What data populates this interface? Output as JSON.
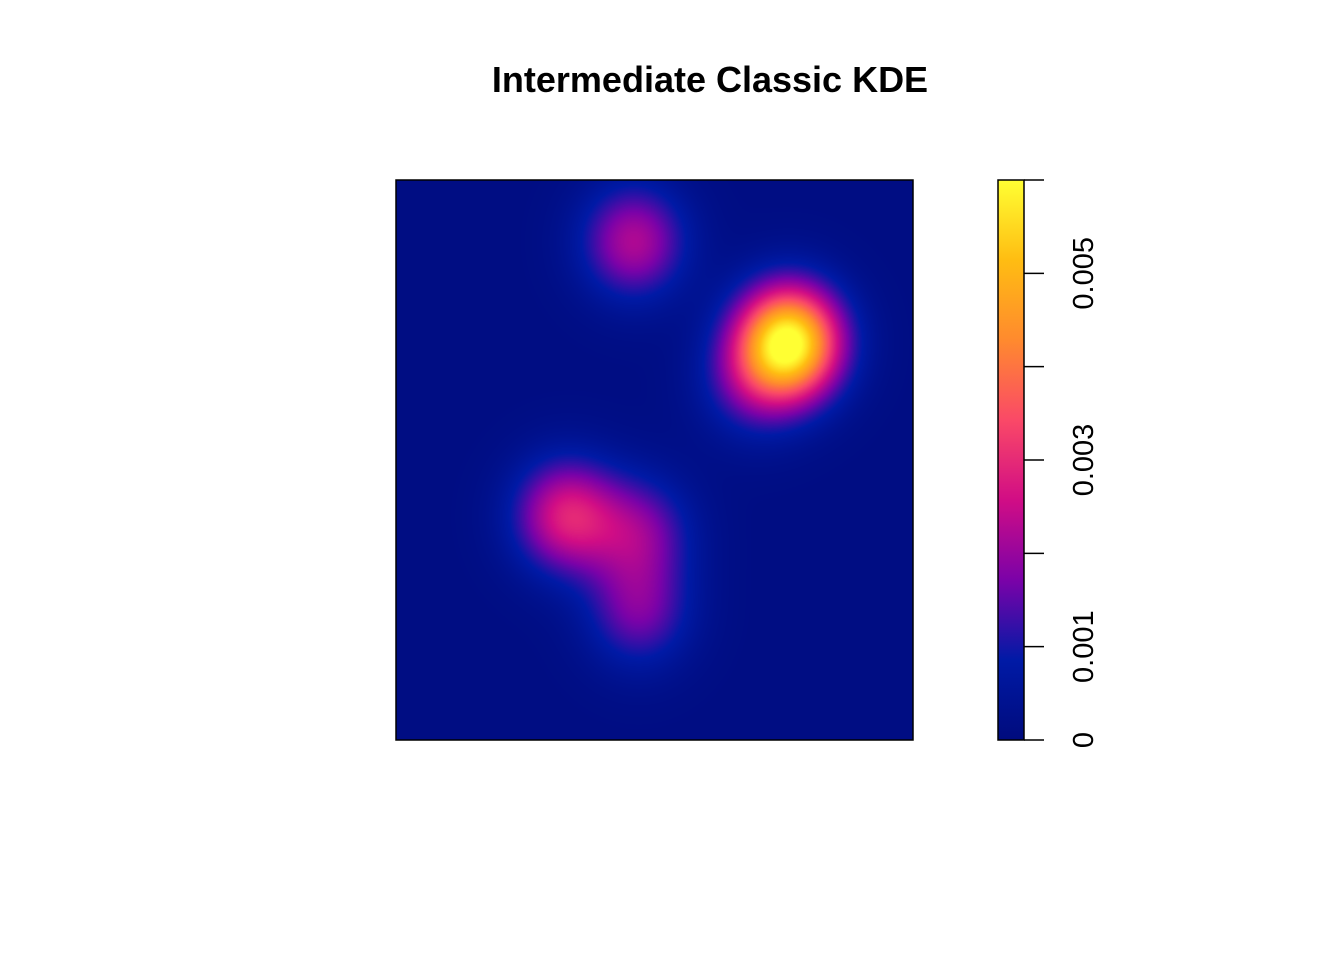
{
  "chart_data": {
    "type": "heatmap",
    "title": "Intermediate Classic KDE",
    "xlabel": "",
    "ylabel": "",
    "axes_visible": false,
    "grid": false,
    "legend": "right",
    "colorbar": {
      "range": [
        0,
        0.006
      ],
      "ticks": [
        0,
        0.001,
        0.002,
        0.003,
        0.004,
        0.005,
        0.006
      ],
      "tick_labels": [
        {
          "value": 0,
          "label": "0"
        },
        {
          "value": 0.001,
          "label": "0.001"
        },
        {
          "value": 0.003,
          "label": "0.003"
        },
        {
          "value": 0.005,
          "label": "0.005"
        }
      ],
      "palette": [
        "#000b7d",
        "#001aa6",
        "#7b02a8",
        "#d10d85",
        "#fa4967",
        "#ff8a2e",
        "#ffbd12",
        "#ffff33"
      ]
    },
    "domain": {
      "x": [
        0,
        1
      ],
      "y": [
        0,
        1
      ]
    },
    "hotspots": [
      {
        "x": 0.76,
        "y": 0.71,
        "peak": 0.0059
      },
      {
        "x": 0.69,
        "y": 0.64,
        "peak": 0.0012
      },
      {
        "x": 0.33,
        "y": 0.4,
        "peak": 0.0026
      },
      {
        "x": 0.47,
        "y": 0.37,
        "peak": 0.0016
      },
      {
        "x": 0.47,
        "y": 0.23,
        "peak": 0.0015
      },
      {
        "x": 0.46,
        "y": 0.89,
        "peak": 0.0021
      }
    ],
    "background_density": 0.00012
  }
}
